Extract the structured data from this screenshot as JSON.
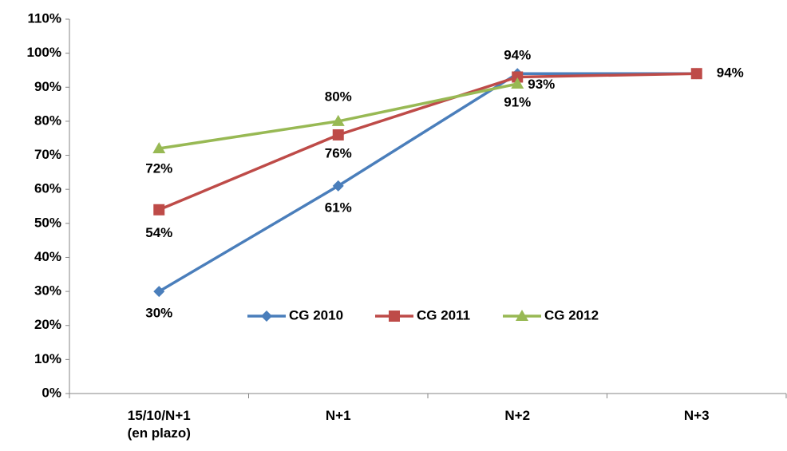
{
  "chart_data": {
    "type": "line",
    "categories": [
      "15/10/N+1\n(en plazo)",
      "N+1",
      "N+2",
      "N+3"
    ],
    "series": [
      {
        "name": "CG 2010",
        "color": "#4a7ebb",
        "values": [
          30,
          61,
          94,
          94
        ],
        "value_labels": [
          "30%",
          "61%",
          "94%",
          null
        ]
      },
      {
        "name": "CG 2011",
        "color": "#be4b48",
        "values": [
          54,
          76,
          93,
          94
        ],
        "value_labels": [
          "54%",
          "76%",
          "93%",
          "94%"
        ]
      },
      {
        "name": "CG 2012",
        "color": "#98b954",
        "values": [
          72,
          80,
          91,
          null
        ],
        "value_labels": [
          "72%",
          "80%",
          "91%",
          null
        ]
      }
    ],
    "ylim": [
      0,
      110
    ],
    "yticks": [
      {
        "value": 0,
        "label": "0%"
      },
      {
        "value": 10,
        "label": "10%"
      },
      {
        "value": 20,
        "label": "20%"
      },
      {
        "value": 30,
        "label": "30%"
      },
      {
        "value": 40,
        "label": "40%"
      },
      {
        "value": 50,
        "label": "50%"
      },
      {
        "value": 60,
        "label": "60%"
      },
      {
        "value": 70,
        "label": "70%"
      },
      {
        "value": 80,
        "label": "80%"
      },
      {
        "value": 90,
        "label": "90%"
      },
      {
        "value": 100,
        "label": "100%"
      },
      {
        "value": 110,
        "label": "110%"
      }
    ],
    "grid": false,
    "legend": "center"
  }
}
